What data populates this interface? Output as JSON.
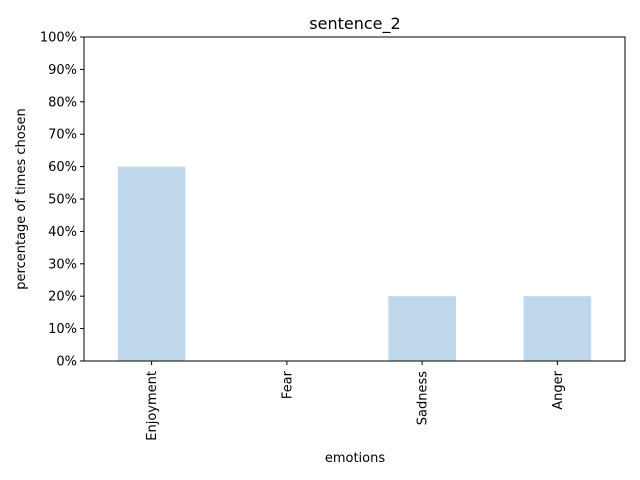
{
  "chart_data": {
    "type": "bar",
    "title": "sentence_2",
    "xlabel": "emotions",
    "ylabel": "percentage of times chosen",
    "categories": [
      "Enjoyment",
      "Fear",
      "Sadness",
      "Anger"
    ],
    "values": [
      60,
      0,
      20,
      20
    ],
    "ylim": [
      0,
      100
    ],
    "yticks": [
      "0%",
      "10%",
      "20%",
      "30%",
      "40%",
      "50%",
      "60%",
      "70%",
      "80%",
      "90%",
      "100%"
    ],
    "grid": false,
    "legend": "none",
    "bar_color": "#bfd7ea"
  }
}
